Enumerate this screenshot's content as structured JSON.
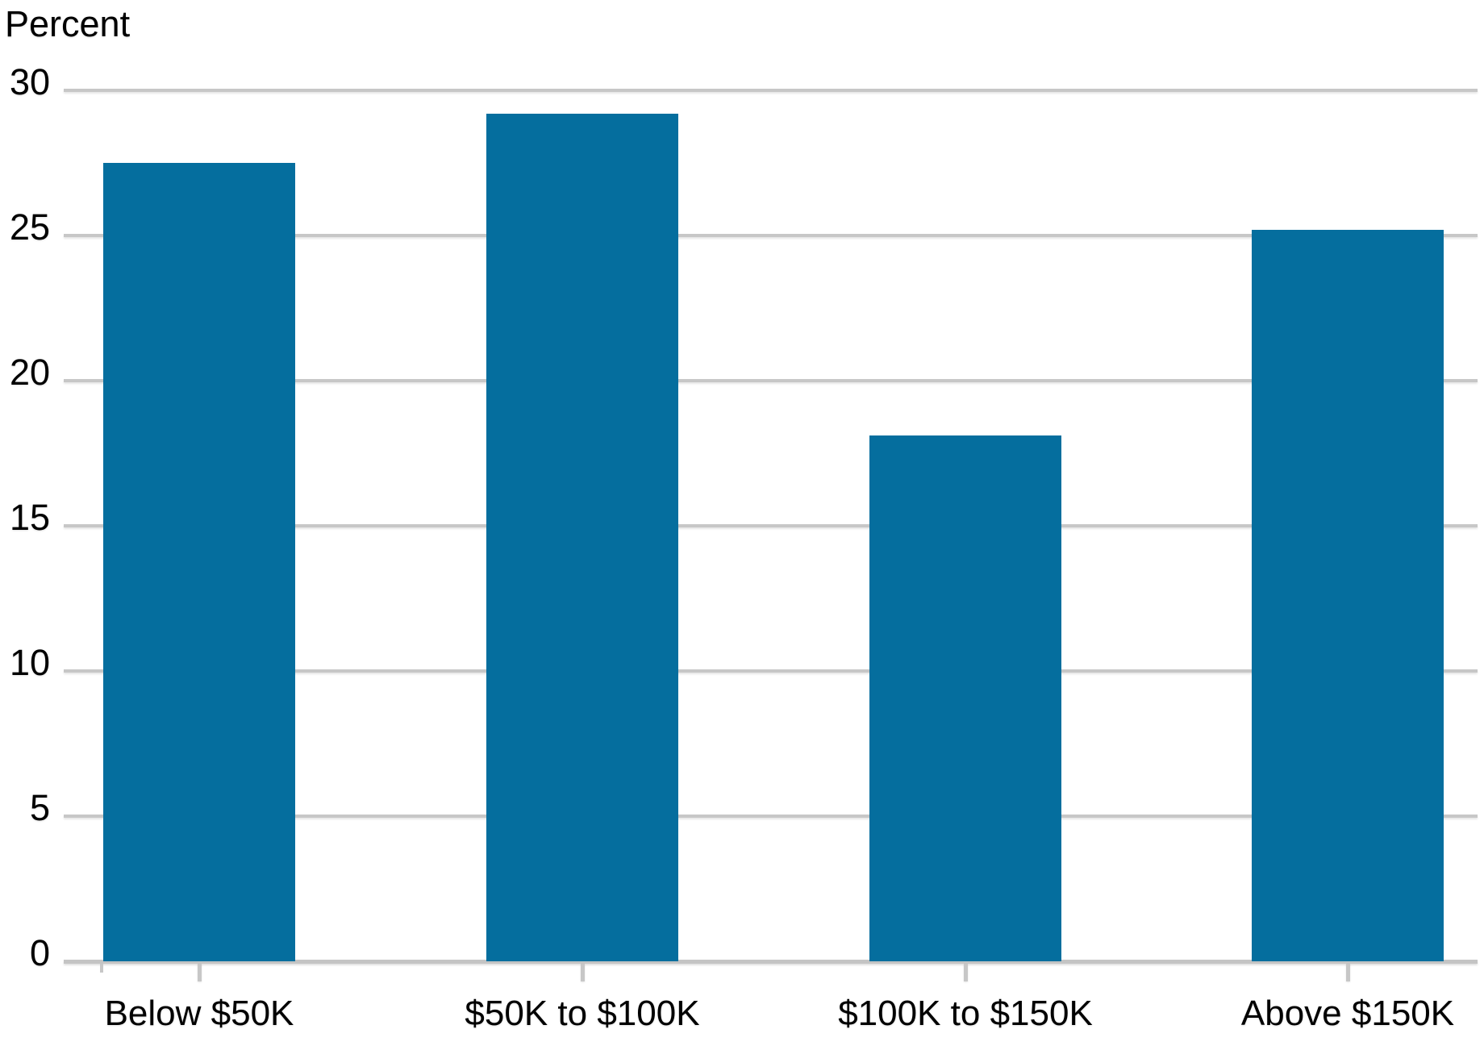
{
  "chart_data": {
    "type": "bar",
    "title": "",
    "ylabel": "Percent",
    "xlabel": "",
    "categories": [
      "Below $50K",
      "$50K to $100K",
      "$100K to $150K",
      "Above $150K"
    ],
    "values": [
      27.5,
      29.2,
      18.1,
      25.2
    ],
    "ylim": [
      0,
      30
    ],
    "yticks": [
      0,
      5,
      10,
      15,
      20,
      25,
      30
    ],
    "grid": "horizontal gridlines on",
    "legend": "none",
    "bar_color": "#056e9e",
    "gridline_color": "#c7c7c7",
    "axis_color": "#c4c4c4",
    "text_color": "#000000",
    "background_color": "#ffffff"
  }
}
